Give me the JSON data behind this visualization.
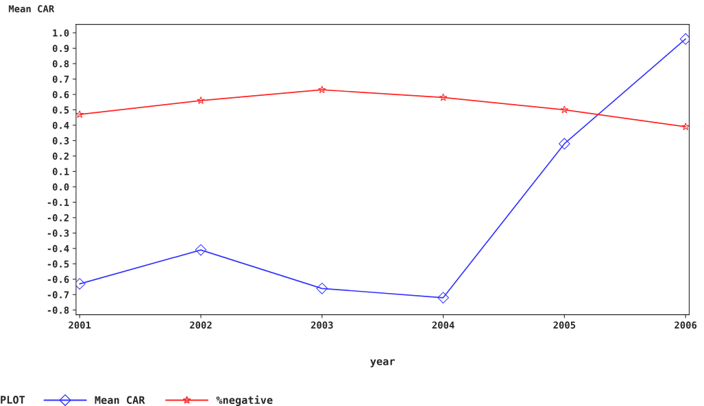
{
  "chart_data": {
    "type": "line",
    "xlabel": "year",
    "ylabel": "Mean CAR",
    "legend_title": "PLOT",
    "legend": "bottom",
    "grid": false,
    "x": [
      2001,
      2002,
      2003,
      2004,
      2005,
      2006
    ],
    "xlim": [
      2000.97,
      2006.03
    ],
    "xticks": [
      2001,
      2002,
      2003,
      2004,
      2005,
      2006
    ],
    "ylim": [
      -0.83,
      1.055
    ],
    "yticks": [
      {
        "value": -0.8,
        "label": "-0.8"
      },
      {
        "value": -0.7,
        "label": "-0.7"
      },
      {
        "value": -0.6,
        "label": "-0.6"
      },
      {
        "value": -0.5,
        "label": "-0.5"
      },
      {
        "value": -0.4,
        "label": "-0.4"
      },
      {
        "value": -0.3,
        "label": "-0.3"
      },
      {
        "value": -0.2,
        "label": "-0.2"
      },
      {
        "value": -0.1,
        "label": "-0.1"
      },
      {
        "value": 0,
        "label": "0.0"
      },
      {
        "value": 0.1,
        "label": "0.1"
      },
      {
        "value": 0.2,
        "label": "0.2"
      },
      {
        "value": 0.3,
        "label": "0.3"
      },
      {
        "value": 0.4,
        "label": "0.4"
      },
      {
        "value": 0.5,
        "label": "0.5"
      },
      {
        "value": 0.6,
        "label": "0.6"
      },
      {
        "value": 0.7,
        "label": "0.7"
      },
      {
        "value": 0.8,
        "label": "0.8"
      },
      {
        "value": 0.9,
        "label": "0.9"
      },
      {
        "value": 1.0,
        "label": "1.0"
      }
    ],
    "series": [
      {
        "name": "Mean CAR",
        "color": "#3333ff",
        "marker": "diamond",
        "values": [
          -0.63,
          -0.41,
          -0.66,
          -0.72,
          0.28,
          0.96
        ]
      },
      {
        "name": "%negative",
        "color": "#ff2222",
        "marker": "star",
        "values": [
          0.47,
          0.56,
          0.63,
          0.58,
          0.5,
          0.39
        ]
      }
    ]
  }
}
